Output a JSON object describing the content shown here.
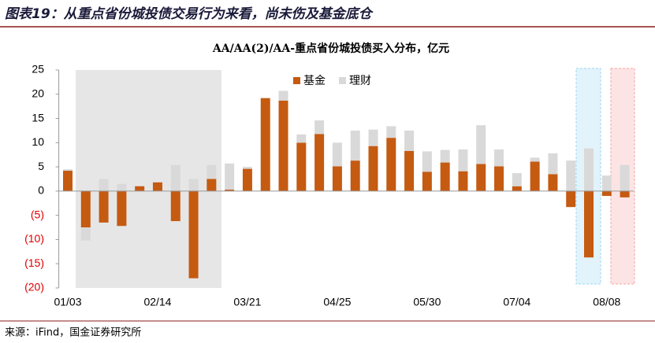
{
  "header": {
    "title": "图表19：从重点省份城投债交易行为来看，尚未伤及基金底仓"
  },
  "chart_data": {
    "type": "stacked_bar",
    "title": "AA/AA(2)/AA-重点省份城投债买入分布，亿元",
    "categories": [
      "01/03",
      null,
      null,
      null,
      null,
      "02/14",
      null,
      null,
      null,
      null,
      "03/21",
      null,
      null,
      null,
      null,
      "04/25",
      null,
      null,
      null,
      null,
      "05/30",
      null,
      null,
      null,
      null,
      "07/04",
      null,
      null,
      null,
      null,
      "08/08",
      null
    ],
    "series": [
      {
        "name": "基金",
        "color": "#c55a11",
        "values": [
          4.2,
          -7.5,
          -6.5,
          -7.2,
          1.0,
          1.8,
          -6.2,
          -18.0,
          2.5,
          0.3,
          4.6,
          19.2,
          18.7,
          10.0,
          11.8,
          5.1,
          6.3,
          9.3,
          11.0,
          8.3,
          4.0,
          5.9,
          4.1,
          5.6,
          5.1,
          1.0,
          6.1,
          3.5,
          -3.3,
          -13.7,
          -1.0,
          -1.3
        ]
      },
      {
        "name": "理财",
        "color": "#d9d9d9",
        "values": [
          0.3,
          -2.7,
          2.5,
          1.5,
          0,
          0,
          5.4,
          2.5,
          2.9,
          5.4,
          0.4,
          0,
          2.0,
          1.7,
          2.8,
          4.9,
          6.2,
          3.4,
          2.4,
          4.2,
          4.2,
          2.6,
          4.5,
          8.0,
          3.5,
          2.7,
          0.8,
          4.3,
          6.3,
          8.8,
          3.2,
          5.4
        ]
      }
    ],
    "ylim": [
      -20,
      25
    ],
    "yticks": [
      {
        "value": -20,
        "label": "(20)"
      },
      {
        "value": -15,
        "label": "(15)"
      },
      {
        "value": -10,
        "label": "(10)"
      },
      {
        "value": -5,
        "label": "(5)"
      },
      0,
      5,
      10,
      15,
      20,
      25
    ],
    "negative_tick_color": "#e00000",
    "legend": "top"
  },
  "footer": {
    "source": "来源：iFind，国金证券研究所"
  }
}
